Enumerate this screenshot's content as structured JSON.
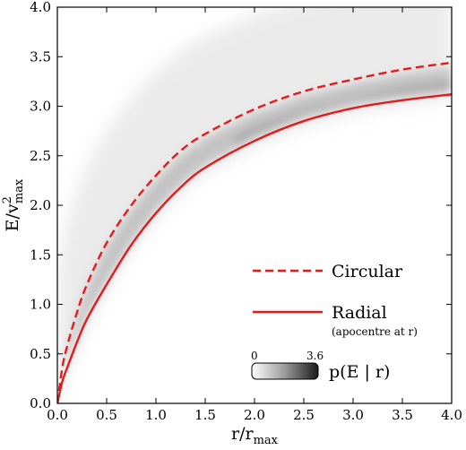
{
  "chart_data": {
    "type": "line",
    "xlabel_base": "r/r",
    "xlabel_sub": "max",
    "ylabel_base": "E/v",
    "ylabel_sup": "2",
    "ylabel_sub": "max",
    "xlim": [
      0.0,
      4.0
    ],
    "ylim": [
      0.0,
      4.0
    ],
    "xticks": [
      "0.0",
      "0.5",
      "1.0",
      "1.5",
      "2.0",
      "2.5",
      "3.0",
      "3.5",
      "4.0"
    ],
    "yticks": [
      "0.0",
      "0.5",
      "1.0",
      "1.5",
      "2.0",
      "2.5",
      "3.0",
      "3.5",
      "4.0"
    ],
    "x": [
      0,
      0.05,
      0.1,
      0.2,
      0.3,
      0.5,
      0.75,
      1.0,
      1.25,
      1.5,
      2.0,
      2.5,
      3.0,
      3.5,
      4.0
    ],
    "series": [
      {
        "name": "Circular",
        "style": "dashed",
        "color": "#e41a1c",
        "values": [
          0.0,
          0.36,
          0.58,
          0.92,
          1.2,
          1.62,
          2.0,
          2.3,
          2.55,
          2.72,
          2.97,
          3.15,
          3.27,
          3.37,
          3.44
        ]
      },
      {
        "name": "Radial",
        "note": "(apocentre at r)",
        "style": "solid",
        "color": "#e41a1c",
        "values": [
          0.0,
          0.22,
          0.36,
          0.62,
          0.85,
          1.2,
          1.6,
          1.92,
          2.18,
          2.38,
          2.65,
          2.85,
          2.98,
          3.06,
          3.12
        ]
      }
    ],
    "colorbar": {
      "label": "p(E | r)",
      "min": "0",
      "max": "3.6",
      "colormap": "grey"
    },
    "grid": false,
    "legend_position": "lower-right"
  }
}
